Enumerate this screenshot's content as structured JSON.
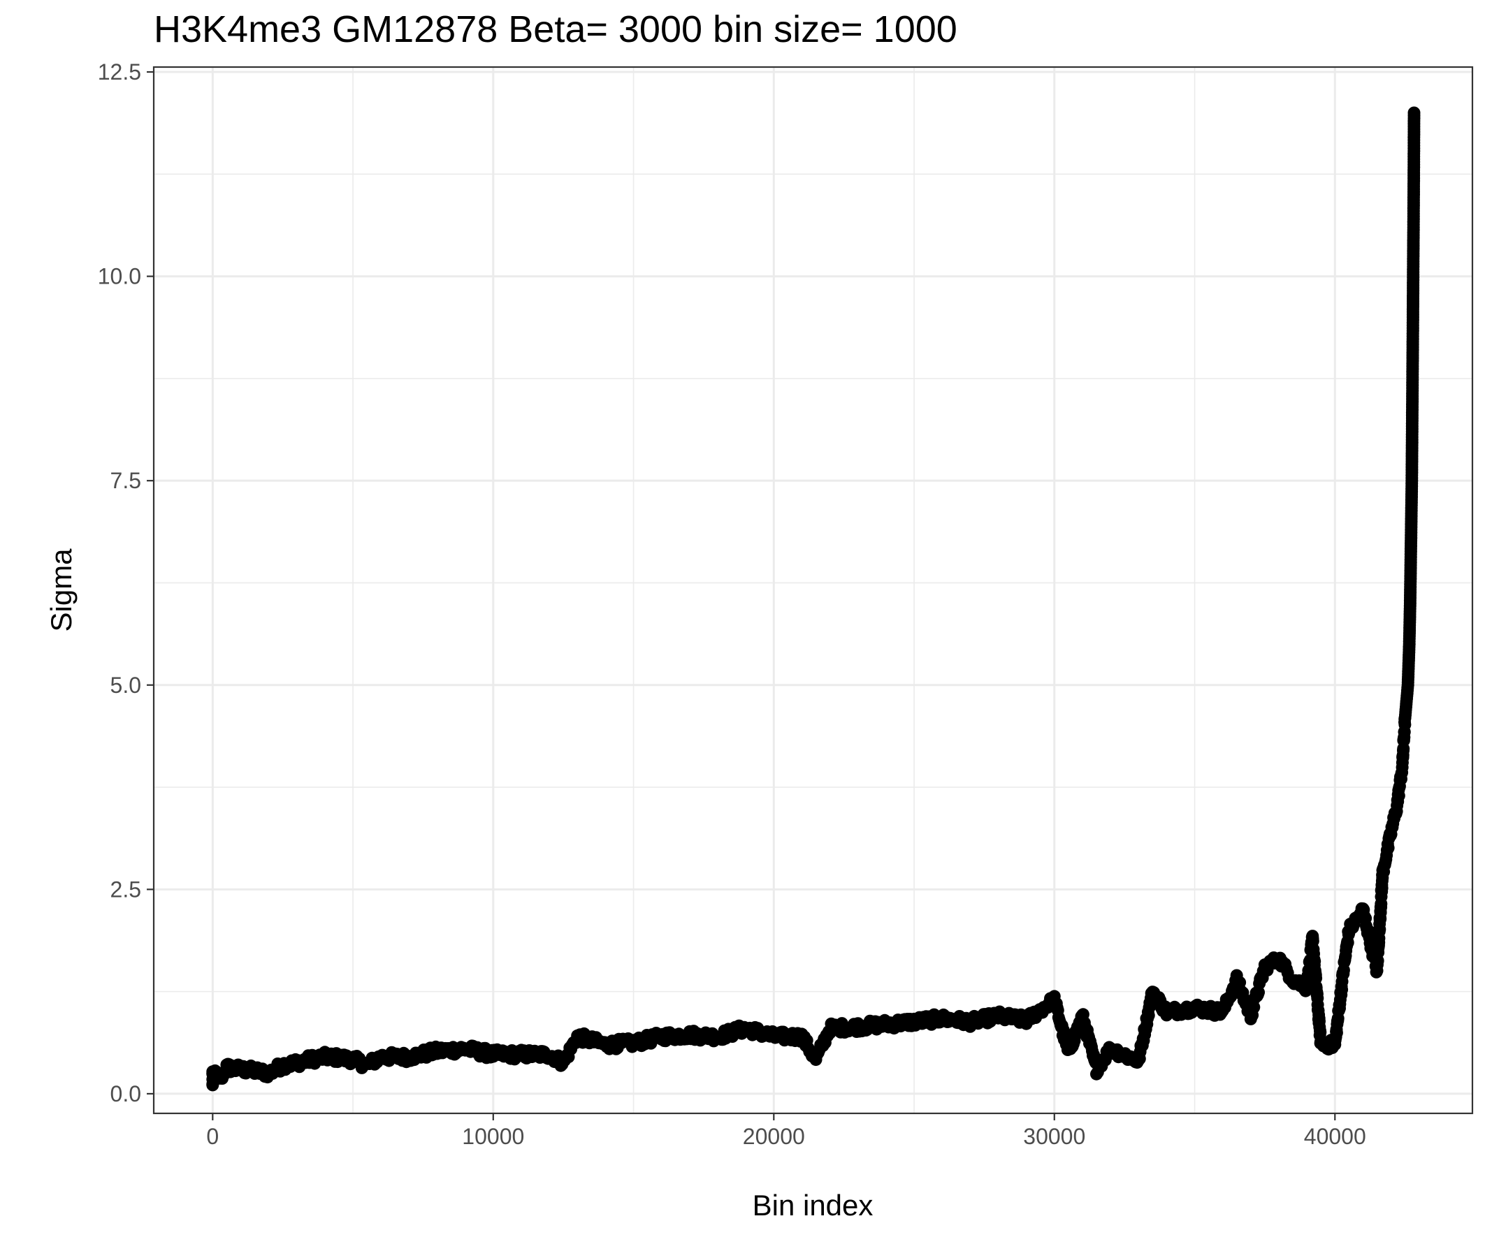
{
  "chart_data": {
    "type": "scatter",
    "title": "H3K4me3 GM12878  Beta=  3000  bin size=  1000",
    "xlabel": "Bin index",
    "ylabel": "Sigma",
    "xlim": [
      -2100,
      44900
    ],
    "ylim": [
      -0.24,
      12.56
    ],
    "x_ticks": [
      0,
      10000,
      20000,
      30000,
      40000
    ],
    "x_tick_labels": [
      "0",
      "10000",
      "20000",
      "30000",
      "40000"
    ],
    "y_ticks": [
      0.0,
      2.5,
      5.0,
      7.5,
      10.0,
      12.5
    ],
    "y_tick_labels": [
      "0.0",
      "2.5",
      "5.0",
      "7.5",
      "10.0",
      "12.5"
    ],
    "grid": true,
    "legend": "none",
    "point_color": "#000000",
    "points_approx": [
      [
        0,
        0.1
      ],
      [
        0,
        0.25
      ],
      [
        300,
        0.2
      ],
      [
        500,
        0.32
      ],
      [
        1000,
        0.3
      ],
      [
        1500,
        0.28
      ],
      [
        2000,
        0.25
      ],
      [
        2500,
        0.35
      ],
      [
        3000,
        0.38
      ],
      [
        3500,
        0.42
      ],
      [
        4000,
        0.45
      ],
      [
        4500,
        0.44
      ],
      [
        5000,
        0.42
      ],
      [
        5500,
        0.35
      ],
      [
        6000,
        0.45
      ],
      [
        7000,
        0.45
      ],
      [
        8000,
        0.52
      ],
      [
        9000,
        0.55
      ],
      [
        10000,
        0.48
      ],
      [
        11000,
        0.48
      ],
      [
        12000,
        0.48
      ],
      [
        12500,
        0.38
      ],
      [
        13000,
        0.7
      ],
      [
        14000,
        0.6
      ],
      [
        15000,
        0.62
      ],
      [
        16000,
        0.7
      ],
      [
        17000,
        0.72
      ],
      [
        18000,
        0.7
      ],
      [
        19000,
        0.8
      ],
      [
        20000,
        0.7
      ],
      [
        21000,
        0.7
      ],
      [
        21500,
        0.42
      ],
      [
        22000,
        0.8
      ],
      [
        23000,
        0.82
      ],
      [
        24000,
        0.85
      ],
      [
        25000,
        0.88
      ],
      [
        26000,
        0.92
      ],
      [
        27000,
        0.88
      ],
      [
        28000,
        0.95
      ],
      [
        29000,
        0.9
      ],
      [
        30000,
        1.15
      ],
      [
        30500,
        0.5
      ],
      [
        31000,
        0.95
      ],
      [
        31500,
        0.3
      ],
      [
        32000,
        0.55
      ],
      [
        33000,
        0.4
      ],
      [
        33500,
        1.25
      ],
      [
        34000,
        1.0
      ],
      [
        35000,
        1.05
      ],
      [
        36000,
        1.0
      ],
      [
        36500,
        1.4
      ],
      [
        37000,
        0.95
      ],
      [
        37500,
        1.55
      ],
      [
        38000,
        1.65
      ],
      [
        38500,
        1.4
      ],
      [
        39000,
        1.3
      ],
      [
        39200,
        1.9
      ],
      [
        39500,
        0.6
      ],
      [
        40000,
        0.6
      ],
      [
        40300,
        1.5
      ],
      [
        40500,
        2.0
      ],
      [
        41000,
        2.25
      ],
      [
        41500,
        1.5
      ],
      [
        41700,
        2.7
      ],
      [
        42000,
        3.2
      ],
      [
        42200,
        3.5
      ],
      [
        42400,
        4.0
      ],
      [
        42500,
        4.6
      ],
      [
        42600,
        5.0
      ],
      [
        42650,
        5.5
      ],
      [
        42680,
        6.0
      ],
      [
        42700,
        6.5
      ],
      [
        42720,
        7.0
      ],
      [
        42740,
        7.5
      ],
      [
        42750,
        8.0
      ],
      [
        42760,
        8.5
      ],
      [
        42770,
        9.0
      ],
      [
        42780,
        9.5
      ],
      [
        42790,
        10.15
      ],
      [
        42800,
        10.6
      ],
      [
        42810,
        11.2
      ],
      [
        42820,
        12.0
      ]
    ]
  }
}
